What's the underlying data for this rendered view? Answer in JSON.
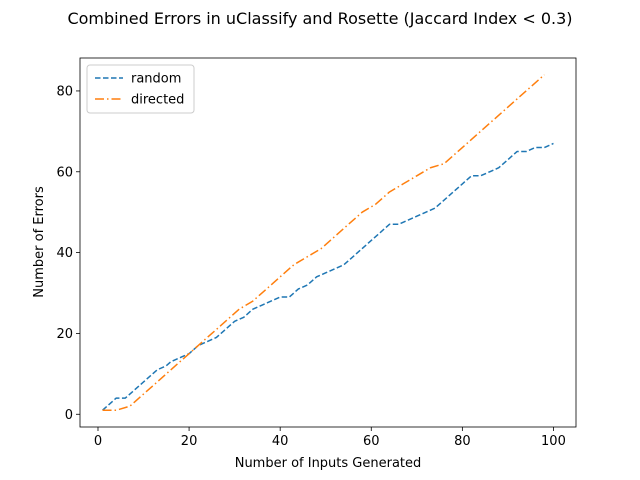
{
  "chart_data": {
    "type": "line",
    "title": "Combined Errors in uClassify and Rosette (Jaccard Index < 0.3)",
    "xlabel": "Number of Inputs Generated",
    "ylabel": "Number of Errors",
    "xlim": [
      -3.95,
      104.95
    ],
    "ylim": [
      -3.15,
      88.15
    ],
    "xticks": [
      0,
      20,
      40,
      60,
      80,
      100
    ],
    "yticks": [
      0,
      20,
      40,
      60,
      80
    ],
    "grid": false,
    "legend_position": "top-left",
    "series": [
      {
        "name": "random",
        "color": "#1f77b4",
        "linestyle": "dashed",
        "x": [
          1,
          3,
          4,
          6,
          7,
          10,
          13,
          15,
          16,
          18,
          20,
          22,
          24,
          26,
          28,
          30,
          32,
          34,
          36,
          38,
          40,
          42,
          44,
          46,
          48,
          50,
          52,
          54,
          56,
          58,
          60,
          62,
          64,
          66,
          68,
          70,
          72,
          74,
          76,
          78,
          80,
          82,
          84,
          86,
          88,
          90,
          92,
          94,
          96,
          98,
          100
        ],
        "y": [
          1,
          3,
          4,
          4,
          5,
          8,
          11,
          12,
          13,
          14,
          15,
          17,
          18,
          19,
          21,
          23,
          24,
          26,
          27,
          28,
          29,
          29,
          31,
          32,
          34,
          35,
          36,
          37,
          39,
          41,
          43,
          45,
          47,
          47,
          48,
          49,
          50,
          51,
          53,
          55,
          57,
          59,
          59,
          60,
          61,
          63,
          65,
          65,
          66,
          66,
          67
        ]
      },
      {
        "name": "directed",
        "color": "#ff7f0e",
        "linestyle": "dashdot",
        "x": [
          1,
          4,
          7,
          10,
          13,
          16,
          19,
          22,
          25,
          28,
          31,
          34,
          37,
          40,
          43,
          46,
          49,
          52,
          55,
          58,
          61,
          64,
          67,
          70,
          73,
          76,
          79,
          82,
          85,
          88,
          91,
          94,
          97,
          98
        ],
        "y": [
          1,
          1,
          2,
          5,
          8,
          11,
          14,
          17,
          20,
          23,
          26,
          28,
          31,
          34,
          37,
          39,
          41,
          44,
          47,
          50,
          52,
          55,
          57,
          59,
          61,
          62,
          65,
          68,
          71,
          74,
          77,
          80,
          83,
          84
        ]
      }
    ]
  }
}
